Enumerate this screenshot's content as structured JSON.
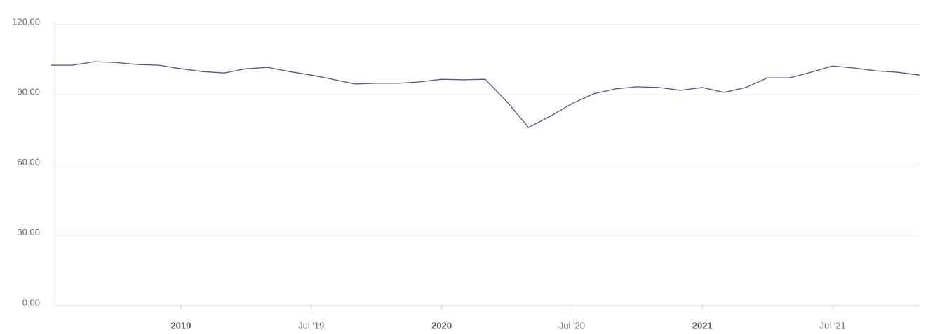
{
  "chart_data": {
    "type": "line",
    "x": [
      "2018-07",
      "2018-08",
      "2018-09",
      "2018-10",
      "2018-11",
      "2018-12",
      "2019-01",
      "2019-02",
      "2019-03",
      "2019-04",
      "2019-05",
      "2019-06",
      "2019-07",
      "2019-08",
      "2019-09",
      "2019-10",
      "2019-11",
      "2019-12",
      "2020-01",
      "2020-02",
      "2020-03",
      "2020-04",
      "2020-05",
      "2020-06",
      "2020-07",
      "2020-08",
      "2020-09",
      "2020-10",
      "2020-11",
      "2020-12",
      "2021-01",
      "2021-02",
      "2021-03",
      "2021-04",
      "2021-05",
      "2021-06",
      "2021-07",
      "2021-08",
      "2021-09",
      "2021-10",
      "2021-11"
    ],
    "series": [
      {
        "color": "#4a5a75",
        "values": [
          101.7,
          101.7,
          103.2,
          102.9,
          102.0,
          101.7,
          100.2,
          99.0,
          98.4,
          100.2,
          100.8,
          99.0,
          97.5,
          95.7,
          93.7,
          94.0,
          94.0,
          94.6,
          95.7,
          95.5,
          95.7,
          86.2,
          75.1,
          79.9,
          85.3,
          89.5,
          91.6,
          92.5,
          92.2,
          91.0,
          92.2,
          90.1,
          92.2,
          96.3,
          96.3,
          98.7,
          101.4,
          100.5,
          99.3,
          98.7,
          97.5
        ]
      }
    ],
    "xlim": [
      "2018-07",
      "2021-11"
    ],
    "xticks": [
      {
        "value": "2019-01",
        "label": "2019"
      },
      {
        "value": "2019-07",
        "label": "Jul '19"
      },
      {
        "value": "2020-01",
        "label": "2020"
      },
      {
        "value": "2020-07",
        "label": "Jul '20"
      },
      {
        "value": "2021-01",
        "label": "2021"
      },
      {
        "value": "2021-07",
        "label": "Jul '21"
      }
    ],
    "ylim": [
      0,
      120
    ],
    "yticks": [
      {
        "value": 0,
        "label": "0.00"
      },
      {
        "value": 30,
        "label": "30.00"
      },
      {
        "value": 60,
        "label": "60.00"
      },
      {
        "value": 90,
        "label": "90.00"
      },
      {
        "value": 120,
        "label": "120.00"
      }
    ],
    "grid": true
  }
}
